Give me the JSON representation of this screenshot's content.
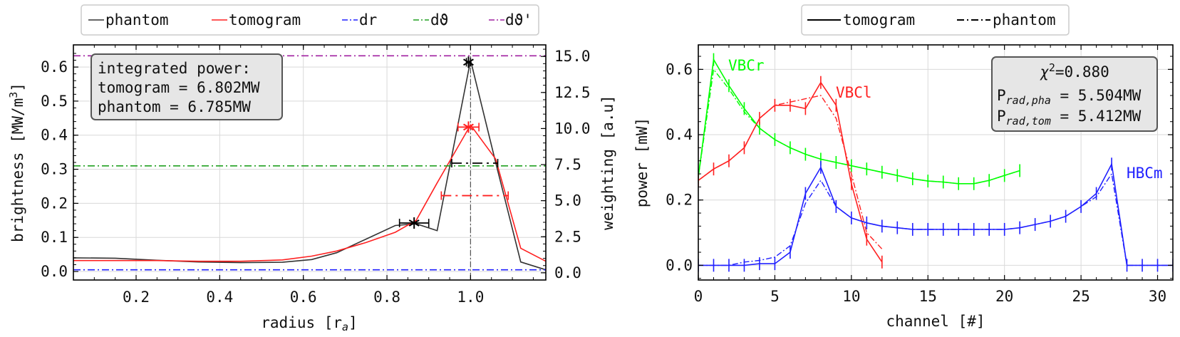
{
  "chart_data": [
    {
      "type": "line",
      "xlabel": "radius [r",
      "xlabel_sub": "a",
      "xlabel_end": "]",
      "ylabel": "brightness [MW/m",
      "ylabel_sup": "3",
      "ylabel_end": "]",
      "y2label": "weighting [a.u]",
      "xlim": [
        0.05,
        1.18
      ],
      "ylim": [
        -0.025,
        0.665
      ],
      "y2lim": [
        -0.5,
        15.8
      ],
      "xticks": [
        "0.2",
        "0.4",
        "0.6",
        "0.8",
        "1.0"
      ],
      "xtick_values": [
        0.2,
        0.4,
        0.6,
        0.8,
        1.0
      ],
      "yticks": [
        "0.0",
        "0.1",
        "0.2",
        "0.3",
        "0.4",
        "0.5",
        "0.6"
      ],
      "ytick_values": [
        0.0,
        0.1,
        0.2,
        0.3,
        0.4,
        0.5,
        0.6
      ],
      "y2ticks": [
        "0.0",
        "2.5",
        "5.0",
        "7.5",
        "10.0",
        "12.5",
        "15.0"
      ],
      "y2tick_values": [
        0.0,
        2.5,
        5.0,
        7.5,
        10.0,
        12.5,
        15.0
      ],
      "grid": true,
      "legend": {
        "placement": "top",
        "entries": [
          {
            "label": "phantom",
            "color": "#333333",
            "style": "solid"
          },
          {
            "label": "tomogram",
            "color": "#ff2020",
            "style": "solid"
          },
          {
            "label": "dr",
            "italic_part": "r",
            "color": "#2020ff",
            "style": "dashdot"
          },
          {
            "label": "dϑ",
            "italic_part": "ϑ",
            "color": "#20a020",
            "style": "dashdot"
          },
          {
            "label": "dϑ'",
            "italic_part": "ϑ",
            "color": "#a020a0",
            "style": "dashdot"
          }
        ]
      },
      "info_box": [
        "integrated power:",
        "tomogram = 6.802MW",
        "phantom = 6.785MW"
      ],
      "series": [
        {
          "name": "phantom",
          "color": "#333333",
          "x": [
            0.05,
            0.15,
            0.25,
            0.35,
            0.45,
            0.55,
            0.62,
            0.68,
            0.75,
            0.82,
            0.87,
            0.92,
            1.0,
            1.06,
            1.12,
            1.18
          ],
          "y": [
            0.04,
            0.039,
            0.033,
            0.028,
            0.026,
            0.027,
            0.035,
            0.055,
            0.095,
            0.135,
            0.14,
            0.12,
            0.62,
            0.32,
            0.028,
            0.005
          ]
        },
        {
          "name": "tomogram",
          "color": "#ff2020",
          "x": [
            0.05,
            0.15,
            0.25,
            0.35,
            0.45,
            0.55,
            0.62,
            0.68,
            0.75,
            0.82,
            0.87,
            0.92,
            1.0,
            1.06,
            1.12,
            1.18
          ],
          "y": [
            0.032,
            0.032,
            0.032,
            0.03,
            0.03,
            0.034,
            0.045,
            0.06,
            0.085,
            0.115,
            0.15,
            0.26,
            0.43,
            0.33,
            0.068,
            0.03
          ]
        },
        {
          "name": "dr",
          "color": "#2020ff",
          "style": "hline",
          "y": 0.005
        },
        {
          "name": "dϑ",
          "color": "#20a020",
          "style": "hline",
          "y": 0.31
        },
        {
          "name": "dϑ'",
          "color": "#a020a0",
          "style": "hline",
          "y": 0.633
        }
      ],
      "vline": {
        "x": 1.0,
        "color": "#555555"
      },
      "weight_markers": [
        {
          "x": 0.865,
          "y2": 3.45,
          "x_from": 0.83,
          "x_to": 0.9,
          "color": "#000000",
          "center": "star"
        },
        {
          "x": 0.995,
          "y2": 14.6,
          "x_from": 0.99,
          "x_to": 1.0,
          "color": "#000000",
          "center": "star"
        },
        {
          "x": 0.995,
          "y2": 10.1,
          "x_from": 0.97,
          "x_to": 1.02,
          "color": "#ff2020",
          "center": "star"
        },
        {
          "x": 1.01,
          "y2": 7.6,
          "x_from": 0.955,
          "x_to": 1.065,
          "color": "#000000",
          "center": "none"
        },
        {
          "x": 1.01,
          "y2": 5.35,
          "x_from": 0.93,
          "x_to": 1.09,
          "color": "#ff2020",
          "center": "none"
        }
      ]
    },
    {
      "type": "line",
      "xlabel": "channel [#]",
      "ylabel": "power [mW]",
      "xlim": [
        0,
        31
      ],
      "ylim": [
        -0.045,
        0.675
      ],
      "xticks": [
        "0",
        "5",
        "10",
        "15",
        "20",
        "25",
        "30"
      ],
      "xtick_values": [
        0,
        5,
        10,
        15,
        20,
        25,
        30
      ],
      "yticks": [
        "0.0",
        "0.2",
        "0.4",
        "0.6"
      ],
      "ytick_values": [
        0.0,
        0.2,
        0.4,
        0.6
      ],
      "grid": true,
      "legend": {
        "placement": "top",
        "entries": [
          {
            "label": "tomogram",
            "color": "#000000",
            "style": "solid"
          },
          {
            "label": "phantom",
            "color": "#000000",
            "style": "dashdot"
          }
        ]
      },
      "info_box": {
        "chi_symbol": "χ",
        "chi_sup": "2",
        "chi_value": "=0.880",
        "line1_main": "P",
        "line1_sub": "rad,pha",
        "line1_value": " = 5.504MW",
        "line2_main": "P",
        "line2_sub": "rad,tom",
        "line2_value": " = 5.412MW"
      },
      "series": [
        {
          "name": "VBCr",
          "color": "#00ff00",
          "x": [
            0,
            1,
            2,
            3,
            4,
            5,
            6,
            7,
            8,
            9,
            10,
            11,
            12,
            13,
            14,
            15,
            16,
            17,
            18,
            19,
            20,
            21
          ],
          "tomogram": [
            0.27,
            0.63,
            0.55,
            0.48,
            0.42,
            0.385,
            0.36,
            0.34,
            0.325,
            0.315,
            0.305,
            0.295,
            0.285,
            0.275,
            0.265,
            0.258,
            0.255,
            0.25,
            0.25,
            0.26,
            0.275,
            0.29
          ],
          "phantom": [
            0.27,
            0.6,
            0.54,
            0.47,
            0.42,
            0.385,
            0.36,
            0.34,
            0.325,
            0.315,
            0.305,
            0.295,
            0.285,
            0.275,
            0.265,
            0.258,
            0.255,
            0.25,
            0.25,
            0.26,
            0.275,
            0.29
          ]
        },
        {
          "name": "VBCl",
          "color": "#ff2020",
          "x": [
            0,
            1,
            2,
            3,
            4,
            5,
            6,
            7,
            8,
            9,
            10,
            11,
            12
          ],
          "tomogram": [
            0.26,
            0.295,
            0.32,
            0.36,
            0.45,
            0.49,
            0.49,
            0.48,
            0.56,
            0.49,
            0.25,
            0.08,
            0.01
          ],
          "phantom": [
            0.26,
            0.295,
            0.32,
            0.36,
            0.45,
            0.49,
            0.5,
            0.51,
            0.52,
            0.45,
            0.28,
            0.1,
            0.05
          ]
        },
        {
          "name": "HBCm",
          "color": "#2020ff",
          "x": [
            0,
            1,
            2,
            3,
            4,
            5,
            6,
            7,
            8,
            9,
            10,
            11,
            12,
            13,
            14,
            15,
            16,
            17,
            18,
            19,
            20,
            21,
            22,
            23,
            24,
            25,
            26,
            27,
            28,
            29,
            30,
            31
          ],
          "tomogram": [
            0.0,
            0.0,
            0.0,
            0.0,
            0.005,
            0.005,
            0.04,
            0.22,
            0.3,
            0.18,
            0.145,
            0.13,
            0.12,
            0.115,
            0.11,
            0.11,
            0.11,
            0.11,
            0.11,
            0.11,
            0.11,
            0.115,
            0.125,
            0.135,
            0.15,
            0.18,
            0.22,
            0.31,
            0.0,
            0.0,
            0.0,
            0.0
          ],
          "phantom": [
            0.0,
            0.0,
            0.0,
            0.01,
            0.015,
            0.025,
            0.06,
            0.19,
            0.26,
            0.18,
            0.145,
            0.13,
            0.12,
            0.115,
            0.11,
            0.11,
            0.11,
            0.11,
            0.11,
            0.11,
            0.11,
            0.115,
            0.125,
            0.135,
            0.15,
            0.18,
            0.21,
            0.28,
            0.0,
            0.0,
            0.0,
            0.0
          ]
        }
      ]
    }
  ]
}
